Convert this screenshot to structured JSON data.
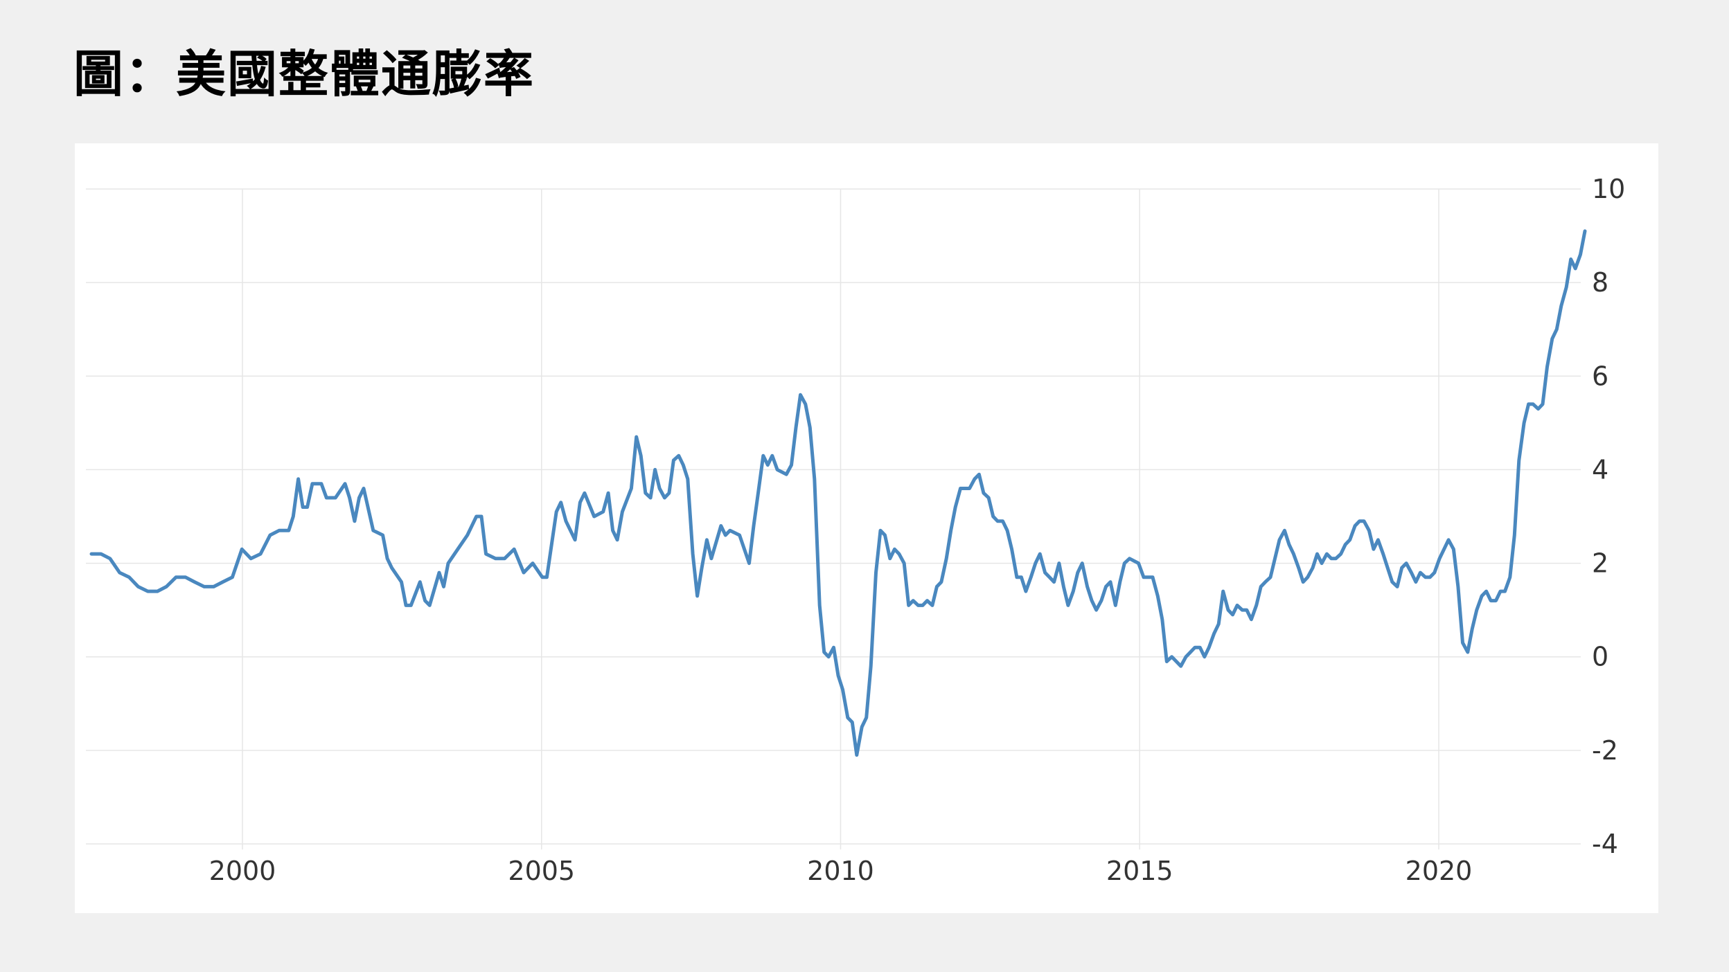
{
  "title": "圖：美國整體通膨率",
  "colors": {
    "background": "#f0f0f0",
    "panel": "#ffffff",
    "line": "#4a88bf",
    "grid": "#e6e6e6",
    "text": "#333333"
  },
  "chart_data": {
    "type": "line",
    "title": "圖：美國整體通膨率",
    "xlabel": "",
    "ylabel": "",
    "xlim": [
      1997.4,
      2022.9
    ],
    "ylim": [
      -4,
      10
    ],
    "x_ticks": [
      2000,
      2005,
      2010,
      2015,
      2020
    ],
    "x_tick_labels": [
      "2000",
      "2005",
      "2010",
      "2015",
      "2020"
    ],
    "y_ticks": [
      -4,
      -2,
      0,
      2,
      4,
      6,
      8,
      10
    ],
    "y_tick_labels": [
      "-4",
      "-2",
      "0",
      "2",
      "4",
      "6",
      "8",
      "10"
    ],
    "y_axis_position": "right",
    "grid": true,
    "legend": "none",
    "series": [
      {
        "points": [
          [
            1997.5,
            2.2
          ],
          [
            1997.67,
            2.2
          ],
          [
            1997.83,
            2.1
          ],
          [
            1998.0,
            1.8
          ],
          [
            1998.17,
            1.7
          ],
          [
            1998.33,
            1.5
          ],
          [
            1998.5,
            1.4
          ],
          [
            1998.67,
            1.4
          ],
          [
            1998.83,
            1.5
          ],
          [
            1999.0,
            1.7
          ],
          [
            1999.17,
            1.7
          ],
          [
            1999.33,
            1.6
          ],
          [
            1999.5,
            1.5
          ],
          [
            1999.67,
            1.5
          ],
          [
            1999.83,
            1.6
          ],
          [
            2000.0,
            1.7
          ],
          [
            2000.17,
            2.3
          ],
          [
            2000.33,
            2.1
          ],
          [
            2000.5,
            2.2
          ],
          [
            2000.67,
            2.6
          ],
          [
            2000.83,
            2.7
          ],
          [
            2001.0,
            2.7
          ],
          [
            2001.08,
            3.0
          ],
          [
            2001.17,
            3.8
          ],
          [
            2001.25,
            3.2
          ],
          [
            2001.33,
            3.2
          ],
          [
            2001.42,
            3.7
          ],
          [
            2001.58,
            3.7
          ],
          [
            2001.67,
            3.4
          ],
          [
            2001.83,
            3.4
          ],
          [
            2002.0,
            3.7
          ],
          [
            2002.08,
            3.4
          ],
          [
            2002.17,
            2.9
          ],
          [
            2002.25,
            3.4
          ],
          [
            2002.33,
            3.6
          ],
          [
            2002.5,
            2.7
          ],
          [
            2002.67,
            2.6
          ],
          [
            2002.75,
            2.1
          ],
          [
            2002.83,
            1.9
          ],
          [
            2003.0,
            1.6
          ],
          [
            2003.08,
            1.1
          ],
          [
            2003.17,
            1.1
          ],
          [
            2003.33,
            1.6
          ],
          [
            2003.42,
            1.2
          ],
          [
            2003.5,
            1.1
          ],
          [
            2003.67,
            1.8
          ],
          [
            2003.75,
            1.5
          ],
          [
            2003.83,
            2.0
          ],
          [
            2004.0,
            2.3
          ],
          [
            2004.17,
            2.6
          ],
          [
            2004.33,
            3.0
          ],
          [
            2004.42,
            3.0
          ],
          [
            2004.5,
            2.2
          ],
          [
            2004.67,
            2.1
          ],
          [
            2004.83,
            2.1
          ],
          [
            2005.0,
            2.3
          ],
          [
            2005.17,
            1.8
          ],
          [
            2005.33,
            2.0
          ],
          [
            2005.5,
            1.7
          ],
          [
            2005.58,
            1.7
          ],
          [
            2005.75,
            3.1
          ],
          [
            2005.83,
            3.3
          ],
          [
            2005.92,
            2.9
          ],
          [
            2006.08,
            2.5
          ],
          [
            2006.17,
            3.3
          ],
          [
            2006.25,
            3.5
          ],
          [
            2006.42,
            3.0
          ],
          [
            2006.58,
            3.1
          ],
          [
            2006.67,
            3.5
          ],
          [
            2006.75,
            2.7
          ],
          [
            2006.83,
            2.5
          ],
          [
            2006.92,
            3.1
          ],
          [
            2007.08,
            3.6
          ],
          [
            2007.17,
            4.7
          ],
          [
            2007.25,
            4.3
          ],
          [
            2007.33,
            3.5
          ],
          [
            2007.42,
            3.4
          ],
          [
            2007.5,
            4.0
          ],
          [
            2007.58,
            3.6
          ],
          [
            2007.67,
            3.4
          ],
          [
            2007.75,
            3.5
          ],
          [
            2007.83,
            4.2
          ],
          [
            2007.92,
            4.3
          ],
          [
            2008.0,
            4.1
          ],
          [
            2008.08,
            3.8
          ],
          [
            2008.17,
            2.2
          ],
          [
            2008.25,
            1.3
          ],
          [
            2008.33,
            1.9
          ],
          [
            2008.42,
            2.5
          ],
          [
            2008.5,
            2.1
          ],
          [
            2008.67,
            2.8
          ],
          [
            2008.75,
            2.6
          ],
          [
            2008.83,
            2.7
          ],
          [
            2009.0,
            2.6
          ],
          [
            2009.17,
            2.0
          ],
          [
            2009.25,
            2.8
          ],
          [
            2009.33,
            3.5
          ],
          [
            2009.42,
            4.3
          ],
          [
            2009.5,
            4.1
          ],
          [
            2009.58,
            4.3
          ],
          [
            2009.67,
            4.0
          ],
          [
            2009.83,
            3.9
          ],
          [
            2009.92,
            4.1
          ],
          [
            2010.0,
            4.9
          ],
          [
            2010.08,
            5.6
          ],
          [
            2010.17,
            5.4
          ],
          [
            2010.25,
            4.9
          ],
          [
            2010.33,
            3.8
          ],
          [
            2010.42,
            1.1
          ],
          [
            2010.5,
            0.1
          ],
          [
            2010.58,
            0.0
          ],
          [
            2010.67,
            0.2
          ],
          [
            2010.75,
            -0.4
          ],
          [
            2010.83,
            -0.7
          ],
          [
            2010.92,
            -1.3
          ],
          [
            2011.0,
            -1.4
          ],
          [
            2011.08,
            -2.1
          ],
          [
            2011.17,
            -1.5
          ],
          [
            2011.25,
            -1.3
          ],
          [
            2011.33,
            -0.2
          ],
          [
            2011.42,
            1.8
          ],
          [
            2011.5,
            2.7
          ],
          [
            2011.58,
            2.6
          ],
          [
            2011.67,
            2.1
          ],
          [
            2011.75,
            2.3
          ],
          [
            2011.83,
            2.2
          ],
          [
            2011.92,
            2.0
          ],
          [
            2012.0,
            1.1
          ],
          [
            2012.08,
            1.2
          ],
          [
            2012.17,
            1.1
          ],
          [
            2012.25,
            1.1
          ],
          [
            2012.33,
            1.2
          ],
          [
            2012.42,
            1.1
          ],
          [
            2012.5,
            1.5
          ],
          [
            2012.58,
            1.6
          ],
          [
            2012.67,
            2.1
          ],
          [
            2012.75,
            2.7
          ],
          [
            2012.83,
            3.2
          ],
          [
            2012.92,
            3.6
          ],
          [
            2013.08,
            3.6
          ],
          [
            2013.17,
            3.8
          ],
          [
            2013.25,
            3.9
          ],
          [
            2013.33,
            3.5
          ],
          [
            2013.42,
            3.4
          ],
          [
            2013.5,
            3.0
          ],
          [
            2013.58,
            2.9
          ],
          [
            2013.67,
            2.9
          ],
          [
            2013.75,
            2.7
          ],
          [
            2013.83,
            2.3
          ],
          [
            2013.92,
            1.7
          ],
          [
            2014.0,
            1.7
          ],
          [
            2014.08,
            1.4
          ],
          [
            2014.17,
            1.7
          ],
          [
            2014.25,
            2.0
          ],
          [
            2014.33,
            2.2
          ],
          [
            2014.42,
            1.8
          ],
          [
            2014.5,
            1.7
          ],
          [
            2014.58,
            1.6
          ],
          [
            2014.67,
            2.0
          ],
          [
            2014.75,
            1.5
          ],
          [
            2014.83,
            1.1
          ],
          [
            2014.92,
            1.4
          ],
          [
            2015.0,
            1.8
          ],
          [
            2015.08,
            2.0
          ],
          [
            2015.17,
            1.5
          ],
          [
            2015.25,
            1.2
          ],
          [
            2015.33,
            1.0
          ],
          [
            2015.42,
            1.2
          ],
          [
            2015.5,
            1.5
          ],
          [
            2015.58,
            1.6
          ],
          [
            2015.67,
            1.1
          ],
          [
            2015.75,
            1.6
          ],
          [
            2015.83,
            2.0
          ],
          [
            2015.92,
            2.1
          ],
          [
            2016.08,
            2.0
          ],
          [
            2016.17,
            1.7
          ],
          [
            2016.33,
            1.7
          ],
          [
            2016.42,
            1.3
          ],
          [
            2016.5,
            0.8
          ],
          [
            2016.58,
            -0.1
          ],
          [
            2016.67,
            0.0
          ],
          [
            2016.75,
            -0.1
          ],
          [
            2016.83,
            -0.2
          ],
          [
            2016.92,
            0.0
          ],
          [
            2017.0,
            0.1
          ],
          [
            2017.08,
            0.2
          ],
          [
            2017.17,
            0.2
          ],
          [
            2017.25,
            0.0
          ],
          [
            2017.33,
            0.2
          ],
          [
            2017.42,
            0.5
          ],
          [
            2017.5,
            0.7
          ],
          [
            2017.58,
            1.4
          ],
          [
            2017.67,
            1.0
          ],
          [
            2017.75,
            0.9
          ],
          [
            2017.83,
            1.1
          ],
          [
            2017.92,
            1.0
          ],
          [
            2018.0,
            1.0
          ],
          [
            2018.08,
            0.8
          ],
          [
            2018.17,
            1.1
          ],
          [
            2018.25,
            1.5
          ],
          [
            2018.33,
            1.6
          ],
          [
            2018.42,
            1.7
          ],
          [
            2018.5,
            2.1
          ],
          [
            2018.58,
            2.5
          ],
          [
            2018.67,
            2.7
          ],
          [
            2018.75,
            2.4
          ],
          [
            2018.83,
            2.2
          ],
          [
            2018.92,
            1.9
          ],
          [
            2019.0,
            1.6
          ],
          [
            2019.08,
            1.7
          ],
          [
            2019.17,
            1.9
          ],
          [
            2019.25,
            2.2
          ],
          [
            2019.33,
            2.0
          ],
          [
            2019.42,
            2.2
          ],
          [
            2019.5,
            2.1
          ],
          [
            2019.58,
            2.1
          ],
          [
            2019.67,
            2.2
          ],
          [
            2019.75,
            2.4
          ],
          [
            2019.83,
            2.5
          ],
          [
            2019.92,
            2.8
          ],
          [
            2020.0,
            2.9
          ],
          [
            2020.08,
            2.9
          ],
          [
            2020.17,
            2.7
          ],
          [
            2020.25,
            2.3
          ],
          [
            2020.33,
            2.5
          ],
          [
            2020.42,
            2.2
          ],
          [
            2020.5,
            1.9
          ],
          [
            2020.58,
            1.6
          ],
          [
            2020.67,
            1.5
          ],
          [
            2020.75,
            1.9
          ],
          [
            2020.83,
            2.0
          ],
          [
            2020.92,
            1.8
          ],
          [
            2021.0,
            1.6
          ],
          [
            2021.08,
            1.8
          ],
          [
            2021.17,
            1.7
          ],
          [
            2021.25,
            1.7
          ],
          [
            2021.33,
            1.8
          ],
          [
            2021.42,
            2.1
          ],
          [
            2021.5,
            2.3
          ],
          [
            2021.58,
            2.5
          ],
          [
            2021.67,
            2.3
          ],
          [
            2021.75,
            1.5
          ],
          [
            2021.83,
            0.3
          ],
          [
            2021.92,
            0.1
          ],
          [
            2022.0,
            0.6
          ],
          [
            2022.08,
            1.0
          ],
          [
            2022.17,
            1.3
          ],
          [
            2022.25,
            1.4
          ],
          [
            2022.33,
            1.2
          ],
          [
            2022.42,
            1.2
          ],
          [
            2022.5,
            1.4
          ],
          [
            2022.58,
            1.4
          ],
          [
            2022.67,
            1.7
          ],
          [
            2022.75,
            2.6
          ],
          [
            2022.83,
            4.2
          ],
          [
            2022.92,
            5.0
          ],
          [
            2023.0,
            5.4
          ],
          [
            2023.08,
            5.4
          ],
          [
            2023.17,
            5.3
          ],
          [
            2023.25,
            5.4
          ],
          [
            2023.33,
            6.2
          ],
          [
            2023.42,
            6.8
          ],
          [
            2023.5,
            7.0
          ],
          [
            2023.58,
            7.5
          ],
          [
            2023.67,
            7.9
          ],
          [
            2023.75,
            8.5
          ],
          [
            2023.83,
            8.3
          ],
          [
            2023.92,
            8.6
          ],
          [
            2024.0,
            9.1
          ]
        ]
      }
    ]
  }
}
